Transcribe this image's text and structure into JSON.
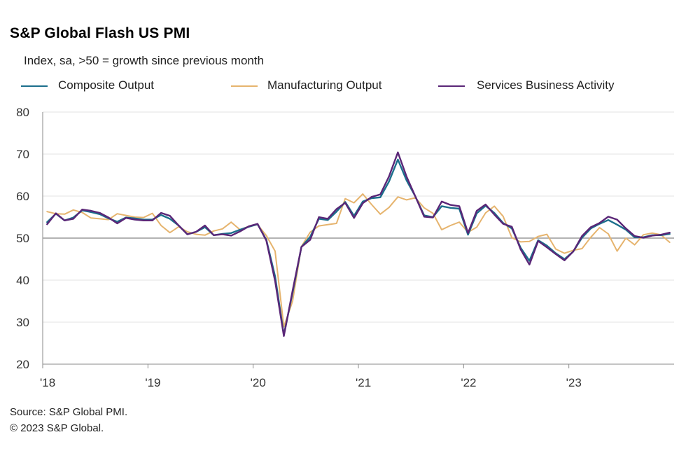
{
  "title": "S&P Global Flash US PMI",
  "subtitle": "Index, sa, >50 = growth  since previous month",
  "footer": {
    "source": "Source: S&P Global PMI.",
    "copyright": "© 2023 S&P Global."
  },
  "chart_data": {
    "type": "line",
    "x": [
      "'18",
      "",
      "",
      "",
      "",
      "",
      "",
      "",
      "",
      "",
      "",
      "",
      "'19",
      "",
      "",
      "",
      "",
      "",
      "",
      "",
      "",
      "",
      "",
      "",
      "'20",
      "",
      "",
      "",
      "",
      "",
      "",
      "",
      "",
      "",
      "",
      "",
      "'21",
      "",
      "",
      "",
      "",
      "",
      "",
      "",
      "",
      "",
      "",
      "",
      "'22",
      "",
      "",
      "",
      "",
      "",
      "",
      "",
      "",
      "",
      "",
      "",
      "'23",
      "",
      "",
      "",
      "",
      "",
      "",
      "",
      "",
      "",
      "",
      ""
    ],
    "xtick_labels": [
      "'18",
      "'19",
      "'20",
      "'21",
      "'22",
      "'23"
    ],
    "ylim": [
      20,
      80
    ],
    "yticks": [
      20,
      30,
      40,
      50,
      60,
      70,
      80
    ],
    "reference_line": 50,
    "grid": true,
    "legend_position": "top",
    "series": [
      {
        "name": "Composite Output",
        "color": "#1c6f8c",
        "values": [
          53.8,
          55.8,
          54.2,
          54.9,
          56.6,
          56.2,
          55.7,
          54.7,
          53.9,
          54.9,
          54.7,
          54.4,
          54.4,
          55.5,
          54.6,
          53.0,
          50.9,
          51.5,
          52.6,
          50.7,
          51.0,
          51.2,
          52.0,
          52.7,
          53.3,
          49.6,
          40.9,
          27.0,
          37.0,
          47.9,
          50.3,
          54.6,
          54.3,
          56.3,
          58.6,
          55.3,
          58.7,
          59.5,
          59.7,
          63.5,
          68.7,
          63.7,
          59.9,
          55.4,
          55.0,
          57.6,
          57.2,
          57.0,
          50.8,
          55.9,
          57.7,
          56.0,
          53.6,
          52.3,
          47.7,
          44.6,
          49.5,
          48.2,
          46.4,
          45.0,
          46.8,
          50.1,
          52.3,
          53.4,
          54.3,
          53.2,
          52.0,
          50.2,
          50.2,
          50.7,
          50.7,
          51.0
        ]
      },
      {
        "name": "Manufacturing Output",
        "color": "#e6b46e",
        "values": [
          56.3,
          55.8,
          55.7,
          56.7,
          56.1,
          54.8,
          54.6,
          54.4,
          55.8,
          55.4,
          55.0,
          54.9,
          55.9,
          53.0,
          51.3,
          52.7,
          51.5,
          50.9,
          50.7,
          51.7,
          52.2,
          53.8,
          52.0,
          52.8,
          53.2,
          50.6,
          46.9,
          28.9,
          35.0,
          48.0,
          51.4,
          52.9,
          53.2,
          53.5,
          59.4,
          58.4,
          60.5,
          58.0,
          55.7,
          57.3,
          59.8,
          59.1,
          59.6,
          57.2,
          55.9,
          52.0,
          53.0,
          53.8,
          51.4,
          52.6,
          56.0,
          57.6,
          55.2,
          50.1,
          49.1,
          49.2,
          50.4,
          50.9,
          47.4,
          46.4,
          47.1,
          47.5,
          50.2,
          52.5,
          51.0,
          46.9,
          50.0,
          48.4,
          50.8,
          51.2,
          50.8,
          49.0
        ]
      },
      {
        "name": "Services Business Activity",
        "color": "#5a2677",
        "values": [
          53.3,
          55.9,
          54.2,
          54.6,
          56.8,
          56.5,
          56.0,
          54.9,
          53.5,
          54.8,
          54.4,
          54.2,
          54.2,
          56.0,
          55.3,
          53.0,
          50.9,
          51.5,
          53.0,
          50.7,
          50.9,
          50.6,
          51.6,
          52.8,
          53.4,
          49.4,
          39.8,
          26.7,
          37.5,
          47.9,
          49.6,
          55.0,
          54.6,
          56.9,
          58.4,
          54.8,
          58.3,
          59.8,
          60.4,
          64.7,
          70.4,
          64.6,
          59.9,
          55.1,
          54.9,
          58.7,
          57.9,
          57.6,
          51.2,
          56.5,
          58.0,
          55.6,
          53.4,
          52.7,
          47.3,
          43.7,
          49.3,
          47.8,
          46.2,
          44.7,
          46.8,
          50.5,
          52.6,
          53.6,
          55.1,
          54.4,
          52.3,
          50.5,
          50.1,
          50.6,
          50.8,
          51.3
        ]
      }
    ]
  }
}
